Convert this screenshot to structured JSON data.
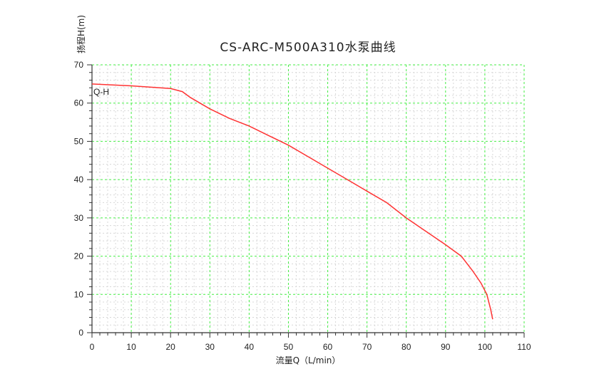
{
  "chart_data": {
    "type": "line",
    "title": "CS-ARC-M500A310水泵曲线",
    "xlabel": "流量Q（L/min）",
    "ylabel": "扬程H(m)",
    "xlim": [
      0,
      110
    ],
    "ylim": [
      0,
      70
    ],
    "xticks": [
      0,
      10,
      20,
      30,
      40,
      50,
      60,
      70,
      80,
      90,
      100,
      110
    ],
    "yticks": [
      0,
      10,
      20,
      30,
      40,
      50,
      60,
      70
    ],
    "grid": true,
    "series": [
      {
        "name": "Q-H",
        "color": "#ff3333",
        "x": [
          0,
          10,
          20,
          23,
          25,
          30,
          35,
          40,
          45,
          50,
          55,
          60,
          65,
          70,
          75,
          80,
          85,
          90,
          94,
          97,
          99,
          100.5,
          101.5,
          102
        ],
        "y": [
          65,
          64.5,
          63.8,
          63,
          61.5,
          58.5,
          56,
          54,
          51.5,
          49,
          46,
          43,
          40,
          37,
          34,
          30,
          26.5,
          23,
          20,
          16,
          13,
          10,
          6,
          3.5
        ]
      }
    ]
  }
}
